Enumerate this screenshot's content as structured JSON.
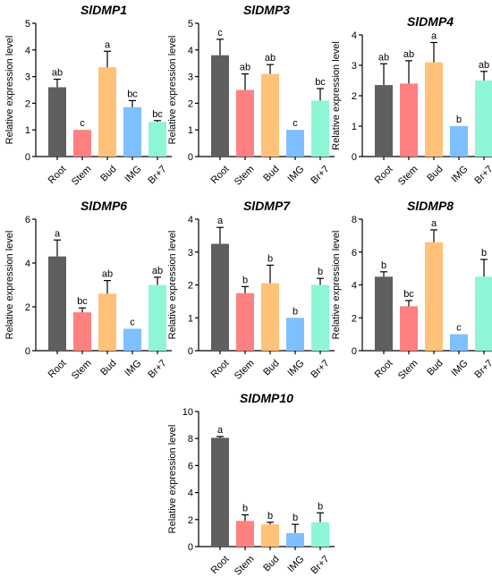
{
  "colors": {
    "Root": "#5f5f5f",
    "Stem": "#ff8080",
    "Bud": "#ffc278",
    "IMG": "#7ec0ff",
    "Br+7": "#8ff5d7"
  },
  "chart_data": [
    {
      "type": "bar",
      "title": "SlDMP1",
      "ylabel": "Relative expression level",
      "categories": [
        "Root",
        "Stem",
        "Bud",
        "IMG",
        "Br+7"
      ],
      "values": [
        2.6,
        1.0,
        3.35,
        1.85,
        1.3
      ],
      "errors": [
        0.3,
        0.0,
        0.6,
        0.25,
        0.05
      ],
      "letters": [
        "ab",
        "c",
        "a",
        "bc",
        "bc"
      ],
      "ylim": [
        0,
        5
      ],
      "yticks": [
        "0",
        "1",
        "2",
        "3",
        "4",
        "5"
      ]
    },
    {
      "type": "bar",
      "title": "SlDMP3",
      "ylabel": "Relative expression level",
      "categories": [
        "Root",
        "Stem",
        "Bud",
        "IMG",
        "Br+7"
      ],
      "values": [
        3.8,
        2.5,
        3.1,
        1.0,
        2.1
      ],
      "errors": [
        0.6,
        0.6,
        0.35,
        0.0,
        0.45
      ],
      "letters": [
        "c",
        "ab",
        "ab",
        "c",
        "bc"
      ],
      "ylim": [
        0,
        5
      ],
      "yticks": [
        "0",
        "1",
        "2",
        "3",
        "4",
        "5"
      ]
    },
    {
      "type": "bar",
      "title": "SlDMP4",
      "ylabel": "Relative expression level",
      "categories": [
        "Root",
        "Stem",
        "Bud",
        "IMG",
        "Br+7"
      ],
      "values": [
        2.35,
        2.4,
        3.1,
        1.0,
        2.5
      ],
      "errors": [
        0.7,
        0.75,
        0.65,
        0.0,
        0.3
      ],
      "letters": [
        "ab",
        "ab",
        "a",
        "b",
        "ab"
      ],
      "ylim": [
        0,
        4
      ],
      "yticks": [
        "0",
        "1",
        "2",
        "3",
        "4"
      ]
    },
    {
      "type": "bar",
      "title": "SlDMP6",
      "ylabel": "Relative expression level",
      "categories": [
        "Root",
        "Stem",
        "Bud",
        "IMG",
        "Br+7"
      ],
      "values": [
        4.3,
        1.75,
        2.6,
        1.0,
        3.0
      ],
      "errors": [
        0.75,
        0.2,
        0.6,
        0.0,
        0.35
      ],
      "letters": [
        "a",
        "bc",
        "ab",
        "c",
        "ab"
      ],
      "ylim": [
        0,
        6
      ],
      "yticks": [
        "0",
        "2",
        "4",
        "6"
      ]
    },
    {
      "type": "bar",
      "title": "SlDMP7",
      "ylabel": "Relative expression level",
      "categories": [
        "Root",
        "Stem",
        "Bud",
        "IMG",
        "Br+7"
      ],
      "values": [
        3.25,
        1.75,
        2.05,
        1.0,
        2.0
      ],
      "errors": [
        0.5,
        0.2,
        0.55,
        0.0,
        0.2
      ],
      "letters": [
        "a",
        "b",
        "b",
        "b",
        "b"
      ],
      "ylim": [
        0,
        4
      ],
      "yticks": [
        "0",
        "1",
        "2",
        "3",
        "4"
      ]
    },
    {
      "type": "bar",
      "title": "SlDMP8",
      "ylabel": "Relative expression level",
      "categories": [
        "Root",
        "Stem",
        "Bud",
        "IMG",
        "Br+7"
      ],
      "values": [
        4.5,
        2.7,
        6.6,
        1.0,
        4.5
      ],
      "errors": [
        0.3,
        0.35,
        0.75,
        0.0,
        1.05
      ],
      "letters": [
        "b",
        "bc",
        "a",
        "c",
        "b"
      ],
      "ylim": [
        0,
        8
      ],
      "yticks": [
        "0",
        "2",
        "4",
        "6",
        "8"
      ]
    },
    {
      "type": "bar",
      "title": "SlDMP10",
      "ylabel": "Relative expression level",
      "categories": [
        "Root",
        "Stem",
        "Bud",
        "IMG",
        "Br+7"
      ],
      "values": [
        8.05,
        1.9,
        1.65,
        1.0,
        1.8
      ],
      "errors": [
        0.1,
        0.45,
        0.15,
        0.65,
        0.7
      ],
      "letters": [
        "a",
        "b",
        "b",
        "b",
        "b"
      ],
      "ylim": [
        0,
        10
      ],
      "yticks": [
        "0",
        "2",
        "4",
        "6",
        "8",
        "10"
      ]
    }
  ]
}
